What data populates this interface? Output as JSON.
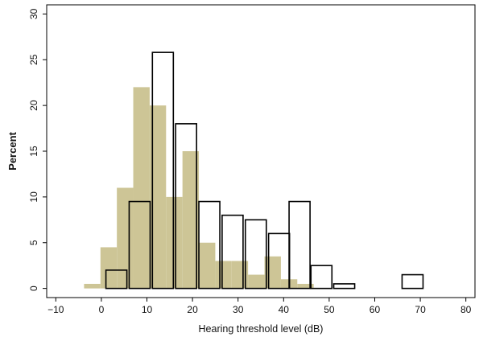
{
  "chart_data": {
    "type": "bar",
    "title": "",
    "xlabel": "Hearing threshold level (dB)",
    "ylabel": "Percent",
    "xlim": [
      -12,
      82
    ],
    "ylim": [
      -1,
      31
    ],
    "x_ticks": [
      "-10",
      "0",
      "10",
      "20",
      "30",
      "40",
      "50",
      "60",
      "70",
      "80"
    ],
    "y_ticks": [
      "0",
      "5",
      "10",
      "15",
      "20",
      "25",
      "30"
    ],
    "grid": false,
    "legend": "none",
    "colors": {
      "filled": "#cdc596",
      "outline": "#000000"
    },
    "series": [
      {
        "style": "filled",
        "bin_width": 3.6,
        "bins": [
          {
            "x": -2,
            "value": 0.5
          },
          {
            "x": 1.6,
            "value": 4.5
          },
          {
            "x": 5.2,
            "value": 11.0
          },
          {
            "x": 8.8,
            "value": 22.0
          },
          {
            "x": 12.4,
            "value": 20.0
          },
          {
            "x": 16.0,
            "value": 10.0
          },
          {
            "x": 19.6,
            "value": 15.0
          },
          {
            "x": 23.2,
            "value": 5.0
          },
          {
            "x": 26.8,
            "value": 3.0
          },
          {
            "x": 30.4,
            "value": 3.0
          },
          {
            "x": 34.0,
            "value": 1.5
          },
          {
            "x": 37.6,
            "value": 3.5
          },
          {
            "x": 41.2,
            "value": 1.0
          },
          {
            "x": 44.8,
            "value": 0.5
          }
        ]
      },
      {
        "style": "outline",
        "bin_width": 4.6,
        "bins": [
          {
            "x": 3.3,
            "value": 2.0
          },
          {
            "x": 8.4,
            "value": 9.5
          },
          {
            "x": 13.5,
            "value": 25.8
          },
          {
            "x": 18.6,
            "value": 18.0
          },
          {
            "x": 23.7,
            "value": 9.5
          },
          {
            "x": 28.8,
            "value": 8.0
          },
          {
            "x": 33.9,
            "value": 7.5
          },
          {
            "x": 39.0,
            "value": 6.0
          },
          {
            "x": 43.5,
            "value": 9.5
          },
          {
            "x": 48.3,
            "value": 2.5
          },
          {
            "x": 53.3,
            "value": 0.5
          },
          {
            "x": 68.3,
            "value": 1.5
          }
        ]
      }
    ]
  }
}
